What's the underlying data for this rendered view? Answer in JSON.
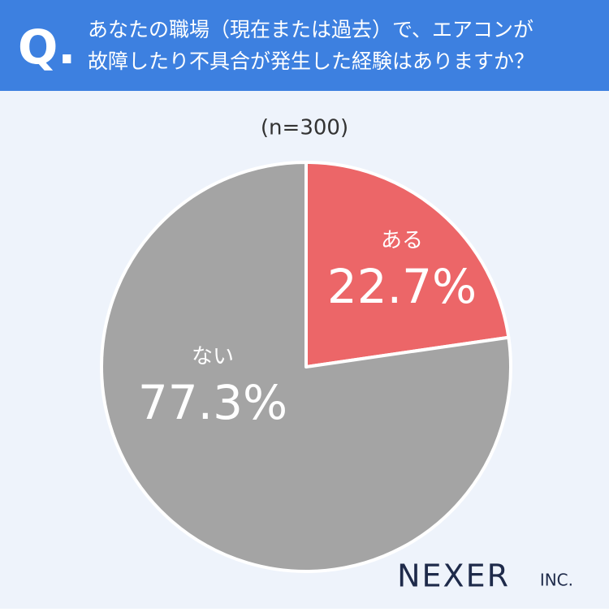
{
  "chart_data": {
    "type": "pie",
    "question_mark": "Q.",
    "title": [
      "あなたの職場（現在または過去）で、エアコンが",
      "故障したり不具合が発生した経験はありますか？"
    ],
    "subtitle": "(n=300)",
    "categories": [
      "ある",
      "ない"
    ],
    "values": [
      22.7,
      77.3
    ],
    "value_labels": [
      "22.7%",
      "77.3%"
    ],
    "colors": [
      "#ec6668",
      "#a4a4a4"
    ],
    "logo": "NEXER",
    "logo_suffix": "INC."
  }
}
